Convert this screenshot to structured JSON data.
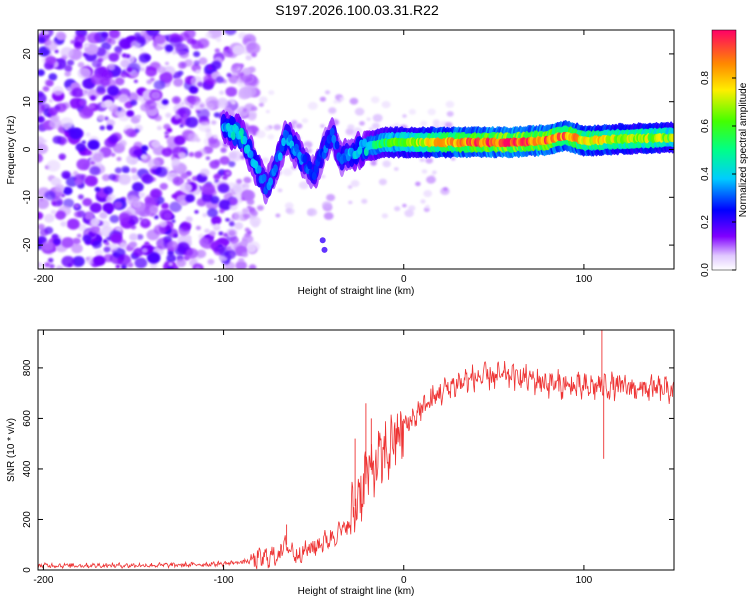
{
  "title": "S197.2026.100.03.31.R22",
  "chart_data": [
    {
      "type": "heatmap",
      "xlabel": "Height of straight line (km)",
      "ylabel": "Frequency (Hz)",
      "xlim": [
        -203,
        150
      ],
      "ylim": [
        -25,
        25
      ],
      "xticks": [
        -200,
        -100,
        0,
        100
      ],
      "yticks": [
        -20,
        -10,
        0,
        10,
        20
      ],
      "colorbar": {
        "label": "Normalized spectral amplitude",
        "range": [
          0,
          1
        ],
        "ticks": [
          "0.0",
          "0.2",
          "0.4",
          "0.6",
          "0.8"
        ],
        "tick_values": [
          0,
          0.2,
          0.4,
          0.6,
          0.8
        ]
      },
      "ridge": {
        "description_points": [
          {
            "x": -100,
            "f": 4.5,
            "a": 0.35
          },
          {
            "x": -95,
            "f": 4.0,
            "a": 0.4
          },
          {
            "x": -90,
            "f": 3.0,
            "a": 0.45
          },
          {
            "x": -85,
            "f": -1.0,
            "a": 0.35
          },
          {
            "x": -80,
            "f": -5.0,
            "a": 0.35
          },
          {
            "x": -76,
            "f": -8.0,
            "a": 0.3
          },
          {
            "x": -65,
            "f": 3.0,
            "a": 0.35
          },
          {
            "x": -60,
            "f": 0.0,
            "a": 0.35
          },
          {
            "x": -55,
            "f": -3.0,
            "a": 0.3
          },
          {
            "x": -50,
            "f": -5.0,
            "a": 0.3
          },
          {
            "x": -40,
            "f": 3.5,
            "a": 0.3
          },
          {
            "x": -35,
            "f": -2.0,
            "a": 0.3
          },
          {
            "x": -28,
            "f": -1.0,
            "a": 0.35
          },
          {
            "x": -22,
            "f": 0.5,
            "a": 0.4
          },
          {
            "x": -15,
            "f": 1.0,
            "a": 0.5
          },
          {
            "x": -10,
            "f": 1.5,
            "a": 0.55
          },
          {
            "x": 0,
            "f": 1.5,
            "a": 0.6
          },
          {
            "x": 10,
            "f": 1.5,
            "a": 0.7
          },
          {
            "x": 20,
            "f": 1.5,
            "a": 0.8
          },
          {
            "x": 40,
            "f": 1.5,
            "a": 0.9
          },
          {
            "x": 60,
            "f": 1.5,
            "a": 0.95
          },
          {
            "x": 80,
            "f": 2.0,
            "a": 0.9
          },
          {
            "x": 90,
            "f": 3.0,
            "a": 0.85
          },
          {
            "x": 100,
            "f": 1.8,
            "a": 0.8
          },
          {
            "x": 120,
            "f": 2.2,
            "a": 0.7
          },
          {
            "x": 150,
            "f": 2.5,
            "a": 0.65
          }
        ]
      }
    },
    {
      "type": "line",
      "xlabel": "Height of straight line (km)",
      "ylabel": "SNR (10 * v/v)",
      "xlim": [
        -203,
        150
      ],
      "ylim": [
        0,
        950
      ],
      "xticks": [
        -200,
        -100,
        0,
        100
      ],
      "yticks": [
        0,
        200,
        400,
        600,
        800
      ],
      "color": "#ee3333",
      "envelope": [
        {
          "x": -203,
          "y": 18
        },
        {
          "x": -150,
          "y": 18
        },
        {
          "x": -120,
          "y": 20
        },
        {
          "x": -100,
          "y": 25
        },
        {
          "x": -85,
          "y": 35
        },
        {
          "x": -70,
          "y": 60
        },
        {
          "x": -65,
          "y": 100
        },
        {
          "x": -60,
          "y": 60
        },
        {
          "x": -50,
          "y": 90
        },
        {
          "x": -40,
          "y": 130
        },
        {
          "x": -30,
          "y": 180
        },
        {
          "x": -25,
          "y": 300
        },
        {
          "x": -20,
          "y": 380
        },
        {
          "x": -15,
          "y": 420
        },
        {
          "x": -10,
          "y": 460
        },
        {
          "x": -5,
          "y": 520
        },
        {
          "x": 0,
          "y": 560
        },
        {
          "x": 5,
          "y": 600
        },
        {
          "x": 10,
          "y": 640
        },
        {
          "x": 20,
          "y": 700
        },
        {
          "x": 30,
          "y": 740
        },
        {
          "x": 40,
          "y": 760
        },
        {
          "x": 60,
          "y": 770
        },
        {
          "x": 80,
          "y": 740
        },
        {
          "x": 100,
          "y": 720
        },
        {
          "x": 110,
          "y": 730
        },
        {
          "x": 130,
          "y": 720
        },
        {
          "x": 150,
          "y": 710
        }
      ],
      "spikes": [
        {
          "x": -21,
          "y": 660
        },
        {
          "x": -27,
          "y": 520
        },
        {
          "x": -18,
          "y": 600
        },
        {
          "x": -65,
          "y": 180
        },
        {
          "x": 110,
          "y": 960
        },
        {
          "x": 111,
          "y": 440
        }
      ]
    }
  ]
}
